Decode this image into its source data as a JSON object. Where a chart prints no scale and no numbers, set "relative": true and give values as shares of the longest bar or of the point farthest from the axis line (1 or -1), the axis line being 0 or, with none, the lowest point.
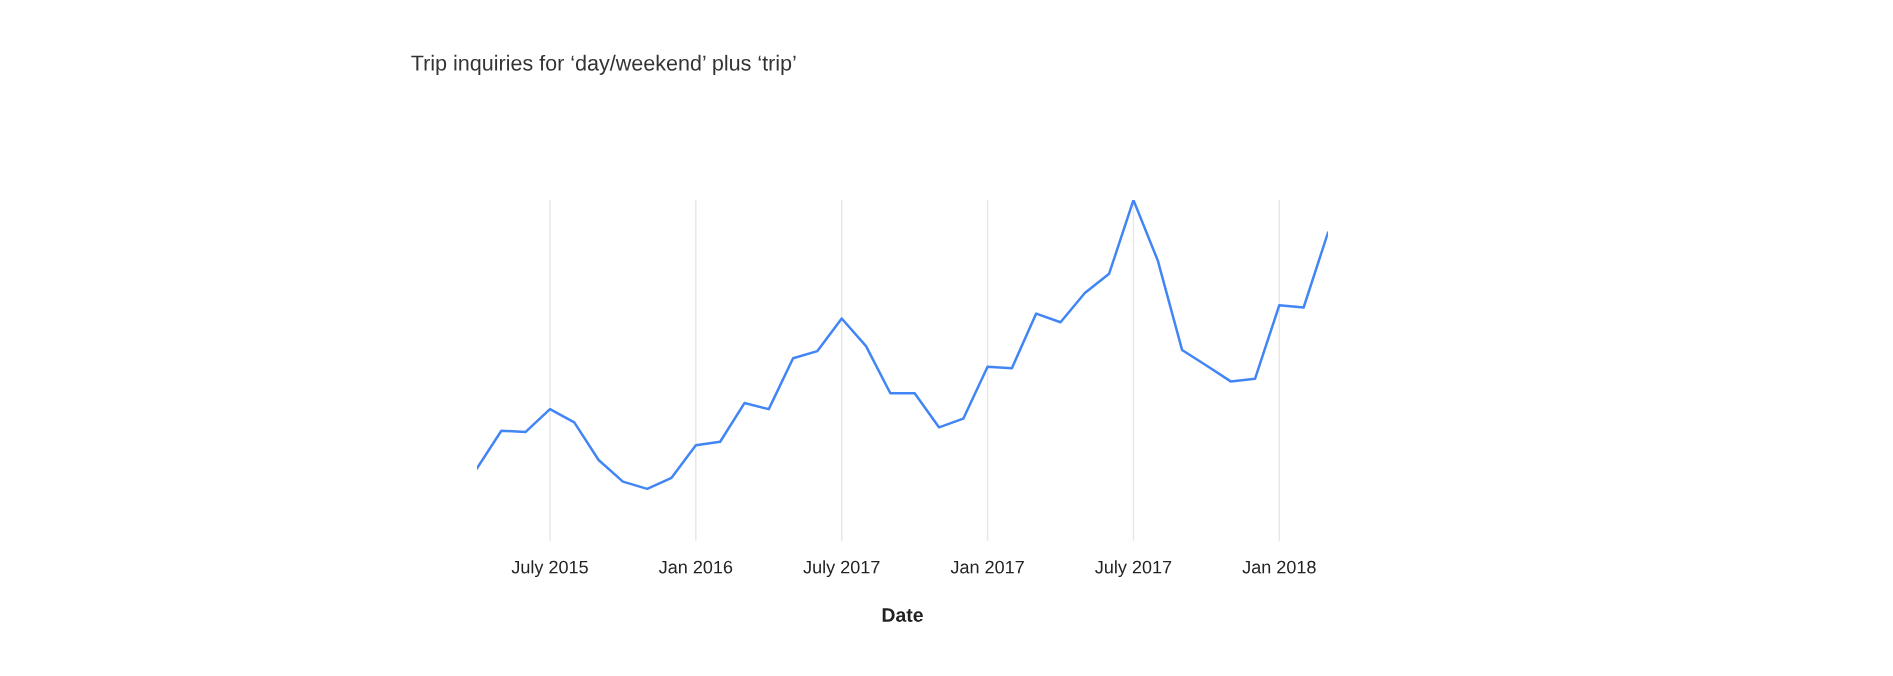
{
  "chart_data": {
    "type": "line",
    "title": "Trip inquiries for ‘day/weekend’ plus ‘trip’",
    "xlabel": "Date",
    "relative": true,
    "grid": "x",
    "legend": false,
    "marker": "none",
    "line_style": "solid",
    "categories": [
      null,
      null,
      null,
      "July 2015",
      null,
      null,
      null,
      null,
      null,
      "Jan 2016",
      null,
      null,
      null,
      null,
      null,
      "July 2017",
      null,
      null,
      null,
      null,
      null,
      "Jan 2017",
      null,
      null,
      null,
      null,
      null,
      "July 2017",
      null,
      null,
      null,
      null,
      null,
      "Jan 2018",
      null,
      null
    ],
    "series": [
      {
        "color": "#4285f4",
        "values": [
          0.071,
          0.201,
          0.197,
          0.276,
          0.23,
          0.1,
          0.025,
          0,
          0.038,
          0.151,
          0.163,
          0.297,
          0.276,
          0.452,
          0.477,
          0.59,
          0.494,
          0.331,
          0.331,
          0.213,
          0.243,
          0.423,
          0.418,
          0.607,
          0.577,
          0.678,
          0.745,
          1,
          0.791,
          0.481,
          0.427,
          0.372,
          0.381,
          0.636,
          0.628,
          0.887
        ]
      }
    ]
  }
}
